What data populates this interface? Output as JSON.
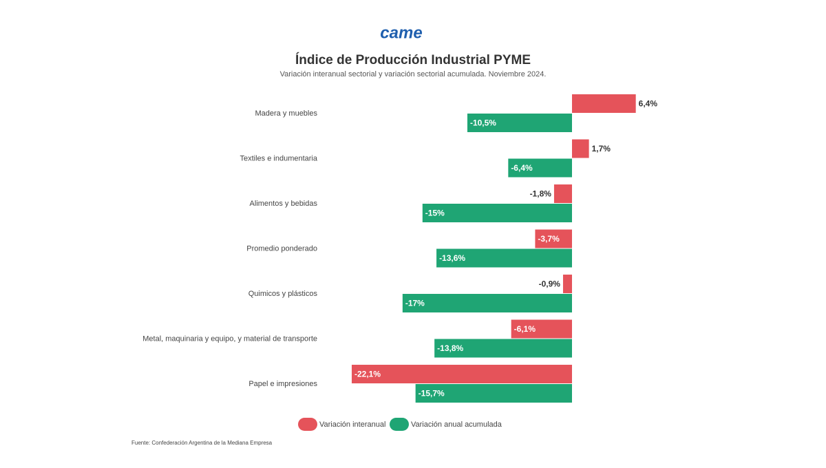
{
  "logo": "came",
  "chart_data": {
    "type": "hbar",
    "title": "Índice de Producción Industrial PYME",
    "subtitle": "Variación interanual sectorial y variación sectorial acumulada. Noviembre 2024.",
    "categories": [
      "Madera y muebles",
      "Textiles e indumentaria",
      "Alimentos y bebidas",
      "Promedio ponderado",
      "Quimicos y plásticos",
      "Metal, maquinaria y equipo, y material de transporte",
      "Papel e impresiones"
    ],
    "series": [
      {
        "name": "Variación interanual",
        "color": "#e5535a",
        "values": [
          6.4,
          1.7,
          -1.8,
          -3.7,
          -0.9,
          -6.1,
          -22.1
        ],
        "value_labels": [
          "6,4%",
          "1,7%",
          "-1,8%",
          "-3,7%",
          "-0,9%",
          "-6,1%",
          "-22,1%"
        ]
      },
      {
        "name": "Variación anual acumulada",
        "color": "#1fa574",
        "values": [
          -10.5,
          -6.4,
          -15,
          -13.6,
          -17,
          -13.8,
          -15.7
        ],
        "value_labels": [
          "-10,5%",
          "-6,4%",
          "-15%",
          "-13,6%",
          "-17%",
          "-13,8%",
          "-15,7%"
        ]
      }
    ],
    "source": "Fuente: Confederación Argentina de la Mediana Empresa"
  }
}
